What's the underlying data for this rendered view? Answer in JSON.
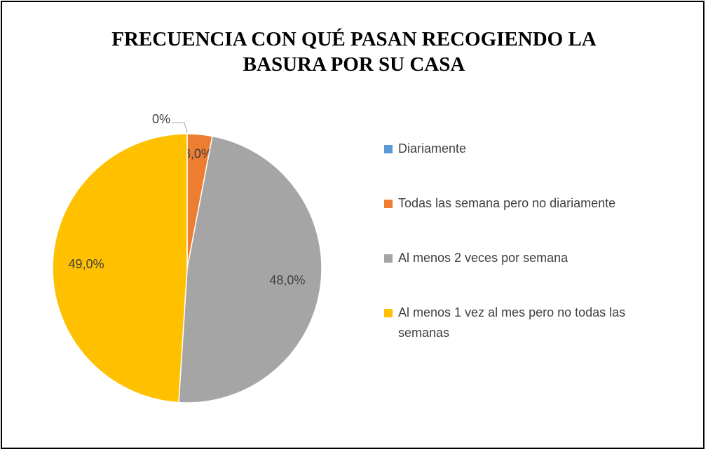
{
  "chart_data": {
    "type": "pie",
    "title": "FRECUENCIA CON QUÉ PASAN RECOGIENDO LA BASURA POR SU CASA",
    "categories": [
      "Diariamente",
      "Todas las semana pero no diariamente",
      "Al menos 2 veces por semana",
      "Al menos 1 vez al mes pero no todas las semanas"
    ],
    "values": [
      0,
      3,
      48,
      49
    ],
    "value_labels": [
      "0%",
      "3,0%",
      "48,0%",
      "49,0%"
    ],
    "colors": [
      "#5b9bd5",
      "#ed7d31",
      "#a5a5a5",
      "#ffc000"
    ],
    "legend": "right"
  }
}
